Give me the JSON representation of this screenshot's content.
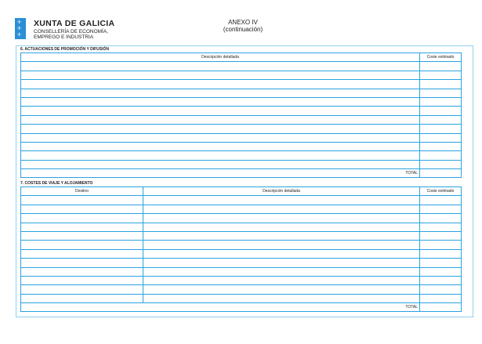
{
  "header": {
    "org": "XUNTA DE GALICIA",
    "dept_line1": "CONSELLERÍA DE ECONOMÍA,",
    "dept_line2": "EMPREGO E INDUSTRIA",
    "title": "ANEXO IV",
    "subtitle": "(continuación)"
  },
  "section6": {
    "title": "6. ACTUACIONES DE PROMOCIÓN Y DIFUSIÓN",
    "columns": [
      "Descripción detallada",
      "Coste estimado"
    ],
    "empty_rows": 12,
    "total_label": "TOTAL"
  },
  "section7": {
    "title": "7. COSTES DE VIAJE Y ALOJAMIENTO",
    "columns": [
      "Destino",
      "Descripción detallada",
      "Coste estimado"
    ],
    "empty_rows": 12,
    "total_label": "TOTAL"
  },
  "colors": {
    "line": "#2aa3e0",
    "logo": "#2a8fd6"
  }
}
